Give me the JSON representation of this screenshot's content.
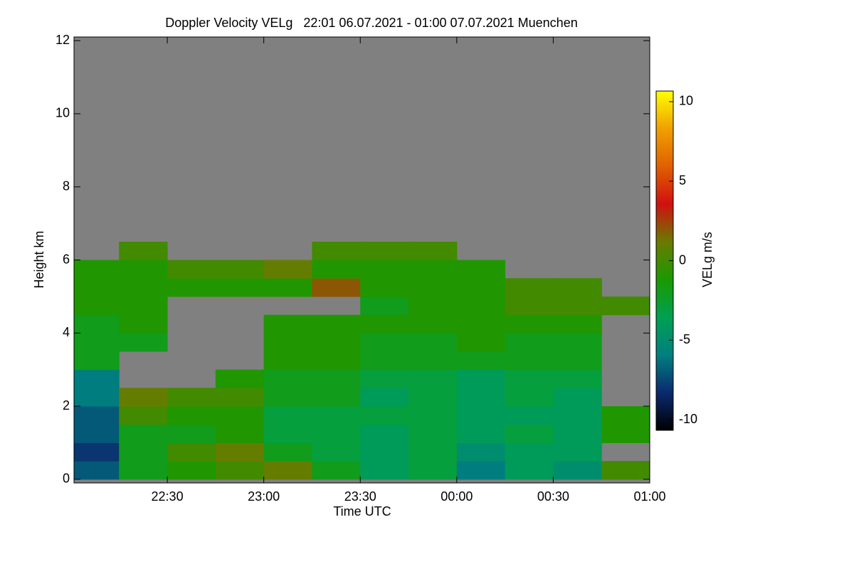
{
  "chart_data": {
    "type": "heatmap",
    "title": "Doppler Velocity VELg   22:01 06.07.2021 - 01:00 07.07.2021 Muenchen",
    "x_label": "Time UTC",
    "y_label": "Height km",
    "colorbar_label": "VELg m/s",
    "background": "#808080",
    "x": [
      22.125,
      22.375,
      22.625,
      22.875,
      23.125,
      23.375,
      23.625,
      23.875,
      24.125,
      24.375,
      24.625,
      24.875
    ],
    "y": [
      0.25,
      0.75,
      1.25,
      1.75,
      2.25,
      2.75,
      3.25,
      3.75,
      4.25,
      4.75,
      5.25,
      5.75,
      6.25
    ],
    "z": [
      [
        -7,
        -8,
        -7,
        -7,
        -6,
        -6,
        -2,
        -2,
        -2,
        -1,
        -1,
        -1,
        null
      ],
      [
        -2,
        -2,
        -2,
        0,
        1,
        null,
        null,
        -2,
        -1,
        -1,
        -1,
        -1,
        0
      ],
      [
        -1,
        0,
        -2,
        -1,
        0,
        null,
        null,
        null,
        null,
        null,
        -1,
        0,
        null
      ],
      [
        0,
        1,
        -1,
        -1,
        0,
        -1,
        null,
        null,
        null,
        null,
        -1,
        0,
        null
      ],
      [
        1,
        -2,
        -3,
        -3,
        -2,
        -2,
        -1,
        -1,
        -1,
        null,
        -1,
        1,
        null
      ],
      [
        -2,
        -3,
        -3,
        -3,
        -2,
        -2,
        -1,
        -1,
        -1,
        null,
        2,
        -1,
        0
      ],
      [
        -4,
        -4,
        -4,
        -3,
        -4,
        -3,
        -2,
        -2,
        -1,
        -2,
        -1,
        -1,
        0
      ],
      [
        -3,
        -3,
        -3,
        -3,
        -3,
        -3,
        -2,
        -2,
        -1,
        -1,
        -1,
        -1,
        0
      ],
      [
        -6,
        -5,
        -4,
        -4,
        -4,
        -4,
        -2,
        -1,
        -1,
        -1,
        -1,
        -1,
        null
      ],
      [
        -4,
        -4,
        -3,
        -4,
        -3,
        -3,
        -2,
        -2,
        -1,
        0,
        0,
        null,
        null
      ],
      [
        -5,
        -4,
        -4,
        -4,
        -4,
        -3,
        -2,
        -2,
        -1,
        0,
        0,
        null,
        null
      ],
      [
        0,
        null,
        -1,
        -1,
        null,
        null,
        null,
        null,
        null,
        0,
        null,
        null,
        null
      ]
    ],
    "xlim": [
      22.0167,
      25.0
    ],
    "xticks": [
      {
        "value": 22.5,
        "label": "22:30"
      },
      {
        "value": 23,
        "label": "23:00"
      },
      {
        "value": 23.5,
        "label": "23:30"
      },
      {
        "value": 24,
        "label": "00:00"
      },
      {
        "value": 24.5,
        "label": "00:30"
      },
      {
        "value": 25,
        "label": "01:00"
      }
    ],
    "ylim": [
      -0.1,
      12.1
    ],
    "yticks": [
      0,
      2,
      4,
      6,
      8,
      10,
      12
    ],
    "clim": [
      -10.67,
      10.67
    ],
    "cticks": [
      -10,
      -5,
      0,
      5,
      10
    ],
    "colormap": [
      "#000000",
      "#0a2a6e",
      "#008080",
      "#00a050",
      "#1a9a00",
      "#6a7a00",
      "#d01010",
      "#e06000",
      "#f0a000",
      "#ffff00"
    ]
  }
}
